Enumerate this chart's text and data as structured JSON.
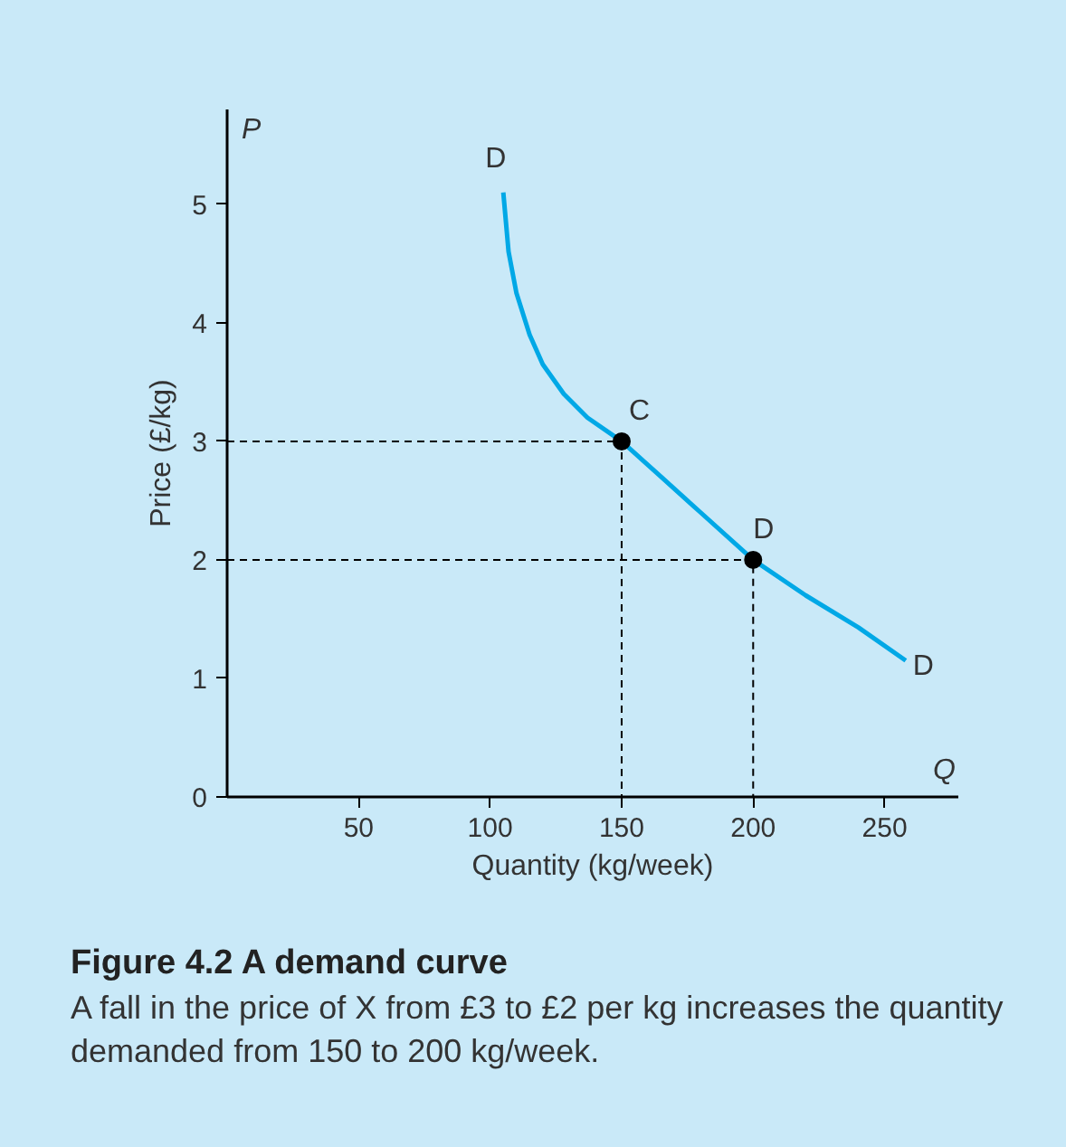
{
  "chart_data": {
    "type": "line",
    "title": "Figure 4.2  A demand curve",
    "subtitle": "A fall in the price of X from £3 to £2 per kg increases the quantity demanded from 150 to 200 kg/week.",
    "xlabel": "Quantity (kg/week)",
    "ylabel": "Price (£/kg)",
    "xlim": [
      0,
      278
    ],
    "ylim": [
      0,
      5.8
    ],
    "xticks": [
      50,
      100,
      150,
      200,
      250
    ],
    "yticks": [
      0,
      1,
      2,
      3,
      4,
      5
    ],
    "series": [
      {
        "color": "#00a8e6",
        "x": [
          105,
          107,
          110,
          115,
          120,
          128,
          137,
          150,
          165,
          180,
          200,
          220,
          240,
          258
        ],
        "values": [
          5.1,
          4.6,
          4.25,
          3.9,
          3.65,
          3.4,
          3.2,
          3.0,
          2.7,
          2.4,
          2.0,
          1.7,
          1.43,
          1.15
        ]
      },
      {
        "color": "#000000",
        "line_style": "dashed",
        "x": [
          0,
          150,
          150
        ],
        "values": [
          3,
          3,
          0
        ]
      },
      {
        "color": "#000000",
        "line_style": "dashed",
        "x": [
          0,
          200,
          200
        ],
        "values": [
          2,
          2,
          0
        ]
      },
      {
        "type": "scatter",
        "color": "#000000",
        "marker": "circle",
        "x": [
          150,
          200
        ],
        "values": [
          3,
          2
        ]
      }
    ],
    "annotations": [
      "P",
      "Q",
      {
        "text": "D",
        "x": 105,
        "y": 5.1
      },
      {
        "text": "C",
        "x": 150,
        "y": 3
      },
      {
        "text": "D",
        "x": 200,
        "y": 2
      },
      {
        "text": "D",
        "x": 258,
        "y": 1.15
      }
    ],
    "grid": false
  }
}
